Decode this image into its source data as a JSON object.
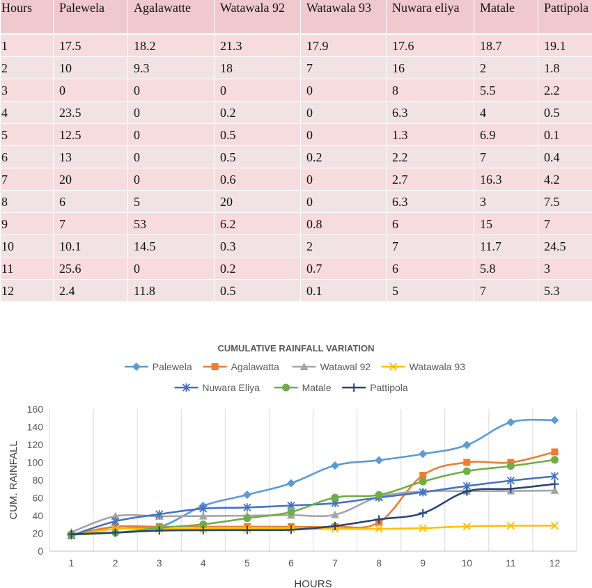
{
  "table": {
    "headers": [
      "Hours",
      "Palewela",
      "Agalawatte",
      "Watawala 92",
      "Watawala 93",
      "Nuwara eliya",
      "Matale",
      "Pattipola"
    ],
    "rows": [
      [
        "1",
        "17.5",
        "18.2",
        "21.3",
        "17.9",
        "17.6",
        "18.7",
        "19.1"
      ],
      [
        "2",
        "10",
        "9.3",
        "18",
        "7",
        "16",
        "2",
        "1.8"
      ],
      [
        "3",
        "0",
        "0",
        "0",
        "0",
        "8",
        "5.5",
        "2.2"
      ],
      [
        "4",
        "23.5",
        "0",
        "0.2",
        "0",
        "6.3",
        "4",
        "0.5"
      ],
      [
        "5",
        "12.5",
        "0",
        "0.5",
        "0",
        "1.3",
        "6.9",
        "0.1"
      ],
      [
        "6",
        "13",
        "0",
        "0.5",
        "0.2",
        "2.2",
        "7",
        "0.4"
      ],
      [
        "7",
        "20",
        "0",
        "0.6",
        "0",
        "2.7",
        "16.3",
        "4.2"
      ],
      [
        "8",
        "6",
        "5",
        "20",
        "0",
        "6.3",
        "3",
        "7.5"
      ],
      [
        "9",
        "7",
        "53",
        "6.2",
        "0.8",
        "6",
        "15",
        "7"
      ],
      [
        "10",
        "10.1",
        "14.5",
        "0.3",
        "2",
        "7",
        "11.7",
        "24.5"
      ],
      [
        "11",
        "25.6",
        "0",
        "0.2",
        "0.7",
        "6",
        "5.8",
        "3"
      ],
      [
        "12",
        "2.4",
        "11.8",
        "0.5",
        "0.1",
        "5",
        "7",
        "5.3"
      ]
    ]
  },
  "chart_data": {
    "type": "line",
    "title": "CUMULATIVE RAINFALL VARIATION",
    "xlabel": "HOURS",
    "ylabel": "CUM. RAINFALL",
    "x": [
      1,
      2,
      3,
      4,
      5,
      6,
      7,
      8,
      9,
      10,
      11,
      12
    ],
    "ylim": [
      0,
      160
    ],
    "yticks": [
      0,
      20,
      40,
      60,
      80,
      100,
      120,
      140,
      160
    ],
    "grid": "vertical",
    "legend": "top",
    "series": [
      {
        "name": "Palewela",
        "color": "#5b9bd5",
        "marker": "diamond",
        "values": [
          17.5,
          27.5,
          27.5,
          51,
          63.5,
          76.5,
          96.5,
          102.5,
          109.5,
          119.6,
          145.2,
          147.6
        ]
      },
      {
        "name": "Agalawatta",
        "color": "#ed7d31",
        "marker": "square",
        "values": [
          18.2,
          27.5,
          27.5,
          27.5,
          27.5,
          27.5,
          27.5,
          32.5,
          85.5,
          100,
          100,
          111.8
        ]
      },
      {
        "name": "Watawal 92",
        "color": "#a5a5a5",
        "marker": "triangle",
        "values": [
          21.3,
          39.3,
          39.3,
          39.5,
          40,
          40.5,
          41.1,
          61.1,
          67.3,
          67.6,
          67.8,
          68.3
        ]
      },
      {
        "name": "Watawala 93",
        "color": "#ffc000",
        "marker": "x",
        "values": [
          17.9,
          24.9,
          24.9,
          24.9,
          24.9,
          25.1,
          25.1,
          25.1,
          25.9,
          27.9,
          28.6,
          28.7
        ]
      },
      {
        "name": "Nuwara Eliya",
        "color": "#4472c4",
        "marker": "star",
        "values": [
          17.6,
          33.6,
          41.6,
          47.9,
          49.2,
          51.4,
          54.1,
          60.4,
          66.4,
          73.4,
          79.4,
          84.4
        ]
      },
      {
        "name": "Matale",
        "color": "#70ad47",
        "marker": "circle",
        "values": [
          18.7,
          20.7,
          26.2,
          30.2,
          37.1,
          44.1,
          60.4,
          63.4,
          78.4,
          90.1,
          95.9,
          102.9
        ]
      },
      {
        "name": "Pattipola",
        "color": "#264478",
        "marker": "plus",
        "values": [
          19.1,
          20.9,
          23.1,
          23.6,
          23.7,
          24.1,
          28.3,
          35.8,
          42.8,
          67.3,
          70.3,
          75.6
        ]
      }
    ]
  }
}
